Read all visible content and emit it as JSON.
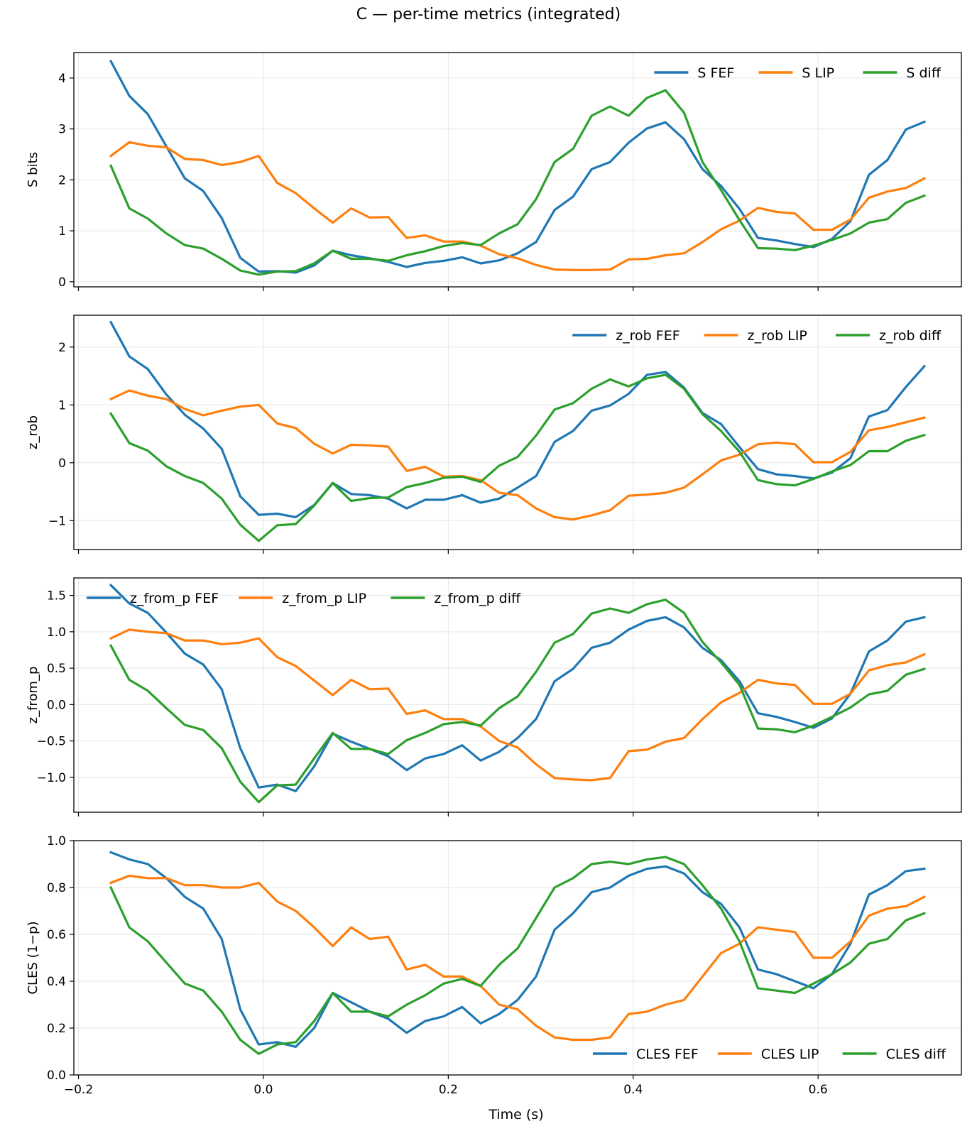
{
  "figure_title": "C — per-time metrics (integrated)",
  "xlabel": "Time (s)",
  "colors": {
    "FEF": "#1f77b4",
    "LIP": "#ff7f0e",
    "diff": "#2ca02c",
    "grid": "#e6e6e6"
  },
  "chart_data": [
    {
      "type": "line",
      "ylabel": "S bits",
      "xlim": [
        -0.205,
        0.755
      ],
      "ylim": [
        -0.1,
        4.5
      ],
      "yticks": [
        0,
        1,
        2,
        3,
        4
      ],
      "ytick_labels": [
        "0",
        "1",
        "2",
        "3",
        "4"
      ],
      "xticks": [
        -0.2,
        0.0,
        0.2,
        0.4,
        0.6
      ],
      "xtick_labels": [],
      "legend": "upper-right",
      "x": [
        -0.165,
        -0.145,
        -0.125,
        -0.105,
        -0.085,
        -0.065,
        -0.045,
        -0.025,
        -0.005,
        0.015,
        0.035,
        0.055,
        0.075,
        0.095,
        0.115,
        0.135,
        0.155,
        0.175,
        0.195,
        0.215,
        0.235,
        0.255,
        0.275,
        0.295,
        0.315,
        0.335,
        0.355,
        0.375,
        0.395,
        0.415,
        0.435,
        0.455,
        0.475,
        0.495,
        0.515,
        0.535,
        0.555,
        0.575,
        0.595,
        0.615,
        0.635,
        0.655,
        0.675,
        0.695,
        0.715
      ],
      "series": [
        {
          "name": "S FEF",
          "key": "FEF",
          "values": [
            4.33,
            3.65,
            3.29,
            2.66,
            2.03,
            1.78,
            1.25,
            0.47,
            0.2,
            0.21,
            0.18,
            0.32,
            0.61,
            0.52,
            0.46,
            0.39,
            0.29,
            0.37,
            0.41,
            0.48,
            0.36,
            0.42,
            0.56,
            0.78,
            1.41,
            1.67,
            2.21,
            2.35,
            2.73,
            3.01,
            3.13,
            2.8,
            2.21,
            1.88,
            1.43,
            0.86,
            0.81,
            0.74,
            0.68,
            0.84,
            1.19,
            2.1,
            2.39,
            2.99,
            3.14
          ]
        },
        {
          "name": "S LIP",
          "key": "LIP",
          "values": [
            2.47,
            2.74,
            2.67,
            2.64,
            2.41,
            2.39,
            2.29,
            2.35,
            2.47,
            1.94,
            1.74,
            1.44,
            1.16,
            1.44,
            1.26,
            1.27,
            0.86,
            0.91,
            0.79,
            0.79,
            0.71,
            0.54,
            0.46,
            0.33,
            0.24,
            0.23,
            0.23,
            0.24,
            0.44,
            0.45,
            0.52,
            0.56,
            0.78,
            1.03,
            1.2,
            1.45,
            1.37,
            1.34,
            1.02,
            1.02,
            1.22,
            1.65,
            1.77,
            1.84,
            2.03
          ]
        },
        {
          "name": "S diff",
          "key": "diff",
          "values": [
            2.28,
            1.44,
            1.24,
            0.95,
            0.72,
            0.65,
            0.45,
            0.22,
            0.14,
            0.2,
            0.21,
            0.36,
            0.61,
            0.45,
            0.45,
            0.41,
            0.52,
            0.6,
            0.7,
            0.76,
            0.72,
            0.95,
            1.13,
            1.62,
            2.35,
            2.61,
            3.26,
            3.44,
            3.26,
            3.61,
            3.76,
            3.32,
            2.35,
            1.8,
            1.21,
            0.66,
            0.65,
            0.62,
            0.71,
            0.82,
            0.95,
            1.16,
            1.23,
            1.55,
            1.69
          ]
        }
      ]
    },
    {
      "type": "line",
      "ylabel": "z_rob",
      "xlim": [
        -0.205,
        0.755
      ],
      "ylim": [
        -1.5,
        2.55
      ],
      "yticks": [
        -1,
        0,
        1,
        2
      ],
      "ytick_labels": [
        "−1",
        "0",
        "1",
        "2"
      ],
      "xticks": [
        -0.2,
        0.0,
        0.2,
        0.4,
        0.6
      ],
      "xtick_labels": [],
      "legend": "upper-right",
      "x": [
        -0.165,
        -0.145,
        -0.125,
        -0.105,
        -0.085,
        -0.065,
        -0.045,
        -0.025,
        -0.005,
        0.015,
        0.035,
        0.055,
        0.075,
        0.095,
        0.115,
        0.135,
        0.155,
        0.175,
        0.195,
        0.215,
        0.235,
        0.255,
        0.275,
        0.295,
        0.315,
        0.335,
        0.355,
        0.375,
        0.395,
        0.415,
        0.435,
        0.455,
        0.475,
        0.495,
        0.515,
        0.535,
        0.555,
        0.575,
        0.595,
        0.615,
        0.635,
        0.655,
        0.675,
        0.695,
        0.715
      ],
      "series": [
        {
          "name": "z_rob FEF",
          "key": "FEF",
          "values": [
            2.43,
            1.84,
            1.62,
            1.18,
            0.83,
            0.59,
            0.24,
            -0.58,
            -0.9,
            -0.88,
            -0.94,
            -0.73,
            -0.35,
            -0.54,
            -0.56,
            -0.62,
            -0.79,
            -0.64,
            -0.64,
            -0.56,
            -0.69,
            -0.62,
            -0.43,
            -0.23,
            0.36,
            0.55,
            0.9,
            0.99,
            1.19,
            1.52,
            1.57,
            1.3,
            0.86,
            0.67,
            0.27,
            -0.11,
            -0.2,
            -0.23,
            -0.27,
            -0.17,
            0.08,
            0.8,
            0.91,
            1.31,
            1.67
          ]
        },
        {
          "name": "z_rob LIP",
          "key": "LIP",
          "values": [
            1.1,
            1.25,
            1.16,
            1.1,
            0.93,
            0.82,
            0.9,
            0.97,
            1.0,
            0.68,
            0.6,
            0.33,
            0.16,
            0.31,
            0.3,
            0.28,
            -0.14,
            -0.07,
            -0.24,
            -0.23,
            -0.3,
            -0.52,
            -0.56,
            -0.79,
            -0.94,
            -0.98,
            -0.91,
            -0.82,
            -0.57,
            -0.55,
            -0.52,
            -0.43,
            -0.2,
            0.04,
            0.14,
            0.32,
            0.35,
            0.32,
            0.01,
            0.01,
            0.19,
            0.56,
            0.62,
            0.7,
            0.78
          ]
        },
        {
          "name": "z_rob diff",
          "key": "diff",
          "values": [
            0.85,
            0.34,
            0.21,
            -0.06,
            -0.23,
            -0.35,
            -0.62,
            -1.07,
            -1.35,
            -1.08,
            -1.06,
            -0.74,
            -0.35,
            -0.66,
            -0.61,
            -0.6,
            -0.42,
            -0.35,
            -0.26,
            -0.24,
            -0.33,
            -0.05,
            0.1,
            0.47,
            0.92,
            1.03,
            1.28,
            1.44,
            1.32,
            1.46,
            1.52,
            1.28,
            0.84,
            0.55,
            0.19,
            -0.3,
            -0.37,
            -0.39,
            -0.28,
            -0.15,
            -0.04,
            0.2,
            0.2,
            0.38,
            0.48
          ]
        }
      ]
    },
    {
      "type": "line",
      "ylabel": "z_from_p",
      "xlim": [
        -0.205,
        0.755
      ],
      "ylim": [
        -1.48,
        1.74
      ],
      "yticks": [
        -1.0,
        -0.5,
        0.0,
        0.5,
        1.0,
        1.5
      ],
      "ytick_labels": [
        "−1.0",
        "−0.5",
        "0.0",
        "0.5",
        "1.0",
        "1.5"
      ],
      "xticks": [
        -0.2,
        0.0,
        0.2,
        0.4,
        0.6
      ],
      "xtick_labels": [],
      "legend": "upper-left",
      "x": [
        -0.165,
        -0.145,
        -0.125,
        -0.105,
        -0.085,
        -0.065,
        -0.045,
        -0.025,
        -0.005,
        0.015,
        0.035,
        0.055,
        0.075,
        0.095,
        0.115,
        0.135,
        0.155,
        0.175,
        0.195,
        0.215,
        0.235,
        0.255,
        0.275,
        0.295,
        0.315,
        0.335,
        0.355,
        0.375,
        0.395,
        0.415,
        0.435,
        0.455,
        0.475,
        0.495,
        0.515,
        0.535,
        0.555,
        0.575,
        0.595,
        0.615,
        0.635,
        0.655,
        0.675,
        0.695,
        0.715
      ],
      "series": [
        {
          "name": "z_from_p FEF",
          "key": "FEF",
          "values": [
            1.64,
            1.39,
            1.26,
            0.99,
            0.7,
            0.55,
            0.21,
            -0.6,
            -1.14,
            -1.1,
            -1.19,
            -0.85,
            -0.4,
            -0.51,
            -0.61,
            -0.71,
            -0.9,
            -0.74,
            -0.68,
            -0.56,
            -0.77,
            -0.65,
            -0.46,
            -0.2,
            0.32,
            0.49,
            0.78,
            0.85,
            1.03,
            1.15,
            1.2,
            1.06,
            0.78,
            0.61,
            0.32,
            -0.12,
            -0.17,
            -0.24,
            -0.32,
            -0.19,
            0.15,
            0.73,
            0.88,
            1.14,
            1.2
          ]
        },
        {
          "name": "z_from_p LIP",
          "key": "LIP",
          "values": [
            0.91,
            1.03,
            1.0,
            0.98,
            0.88,
            0.88,
            0.83,
            0.85,
            0.91,
            0.65,
            0.53,
            0.33,
            0.13,
            0.34,
            0.21,
            0.22,
            -0.13,
            -0.08,
            -0.2,
            -0.2,
            -0.3,
            -0.5,
            -0.59,
            -0.82,
            -1.01,
            -1.03,
            -1.04,
            -1.01,
            -0.64,
            -0.62,
            -0.51,
            -0.46,
            -0.2,
            0.03,
            0.16,
            0.34,
            0.29,
            0.27,
            0.01,
            0.01,
            0.15,
            0.47,
            0.54,
            0.58,
            0.69
          ]
        },
        {
          "name": "z_from_p diff",
          "key": "diff",
          "values": [
            0.81,
            0.34,
            0.19,
            -0.05,
            -0.28,
            -0.35,
            -0.6,
            -1.06,
            -1.34,
            -1.11,
            -1.1,
            -0.74,
            -0.39,
            -0.61,
            -0.61,
            -0.68,
            -0.49,
            -0.39,
            -0.27,
            -0.24,
            -0.29,
            -0.05,
            0.11,
            0.45,
            0.85,
            0.97,
            1.25,
            1.32,
            1.26,
            1.38,
            1.44,
            1.26,
            0.86,
            0.58,
            0.27,
            -0.33,
            -0.34,
            -0.38,
            -0.29,
            -0.17,
            -0.04,
            0.14,
            0.19,
            0.41,
            0.49
          ]
        }
      ]
    },
    {
      "type": "line",
      "ylabel": "CLES (1−p)",
      "xlim": [
        -0.205,
        0.755
      ],
      "ylim": [
        0.0,
        1.0
      ],
      "yticks": [
        0.0,
        0.2,
        0.4,
        0.6,
        0.8,
        1.0
      ],
      "ytick_labels": [
        "0.0",
        "0.2",
        "0.4",
        "0.6",
        "0.8",
        "1.0"
      ],
      "xticks": [
        -0.2,
        0.0,
        0.2,
        0.4,
        0.6
      ],
      "xtick_labels": [
        "−0.2",
        "0.0",
        "0.2",
        "0.4",
        "0.6"
      ],
      "legend": "lower-right",
      "x": [
        -0.165,
        -0.145,
        -0.125,
        -0.105,
        -0.085,
        -0.065,
        -0.045,
        -0.025,
        -0.005,
        0.015,
        0.035,
        0.055,
        0.075,
        0.095,
        0.115,
        0.135,
        0.155,
        0.175,
        0.195,
        0.215,
        0.235,
        0.255,
        0.275,
        0.295,
        0.315,
        0.335,
        0.355,
        0.375,
        0.395,
        0.415,
        0.435,
        0.455,
        0.475,
        0.495,
        0.515,
        0.535,
        0.555,
        0.575,
        0.595,
        0.615,
        0.635,
        0.655,
        0.675,
        0.695,
        0.715
      ],
      "series": [
        {
          "name": "CLES FEF",
          "key": "FEF",
          "values": [
            0.95,
            0.92,
            0.9,
            0.84,
            0.76,
            0.71,
            0.58,
            0.28,
            0.13,
            0.14,
            0.12,
            0.2,
            0.35,
            0.31,
            0.27,
            0.24,
            0.18,
            0.23,
            0.25,
            0.29,
            0.22,
            0.26,
            0.32,
            0.42,
            0.62,
            0.69,
            0.78,
            0.8,
            0.85,
            0.88,
            0.89,
            0.86,
            0.78,
            0.73,
            0.63,
            0.45,
            0.43,
            0.4,
            0.37,
            0.43,
            0.56,
            0.77,
            0.81,
            0.87,
            0.88
          ]
        },
        {
          "name": "CLES LIP",
          "key": "LIP",
          "values": [
            0.82,
            0.85,
            0.84,
            0.84,
            0.81,
            0.81,
            0.8,
            0.8,
            0.82,
            0.74,
            0.7,
            0.63,
            0.55,
            0.63,
            0.58,
            0.59,
            0.45,
            0.47,
            0.42,
            0.42,
            0.38,
            0.3,
            0.28,
            0.21,
            0.16,
            0.15,
            0.15,
            0.16,
            0.26,
            0.27,
            0.3,
            0.32,
            0.42,
            0.52,
            0.56,
            0.63,
            0.62,
            0.61,
            0.5,
            0.5,
            0.57,
            0.68,
            0.71,
            0.72,
            0.76
          ]
        },
        {
          "name": "CLES diff",
          "key": "diff",
          "values": [
            0.8,
            0.63,
            0.57,
            0.48,
            0.39,
            0.36,
            0.27,
            0.15,
            0.09,
            0.13,
            0.14,
            0.23,
            0.35,
            0.27,
            0.27,
            0.25,
            0.3,
            0.34,
            0.39,
            0.41,
            0.38,
            0.47,
            0.54,
            0.67,
            0.8,
            0.84,
            0.9,
            0.91,
            0.9,
            0.92,
            0.93,
            0.9,
            0.81,
            0.71,
            0.57,
            0.37,
            0.36,
            0.35,
            0.39,
            0.43,
            0.48,
            0.56,
            0.58,
            0.66,
            0.69
          ]
        }
      ]
    }
  ]
}
